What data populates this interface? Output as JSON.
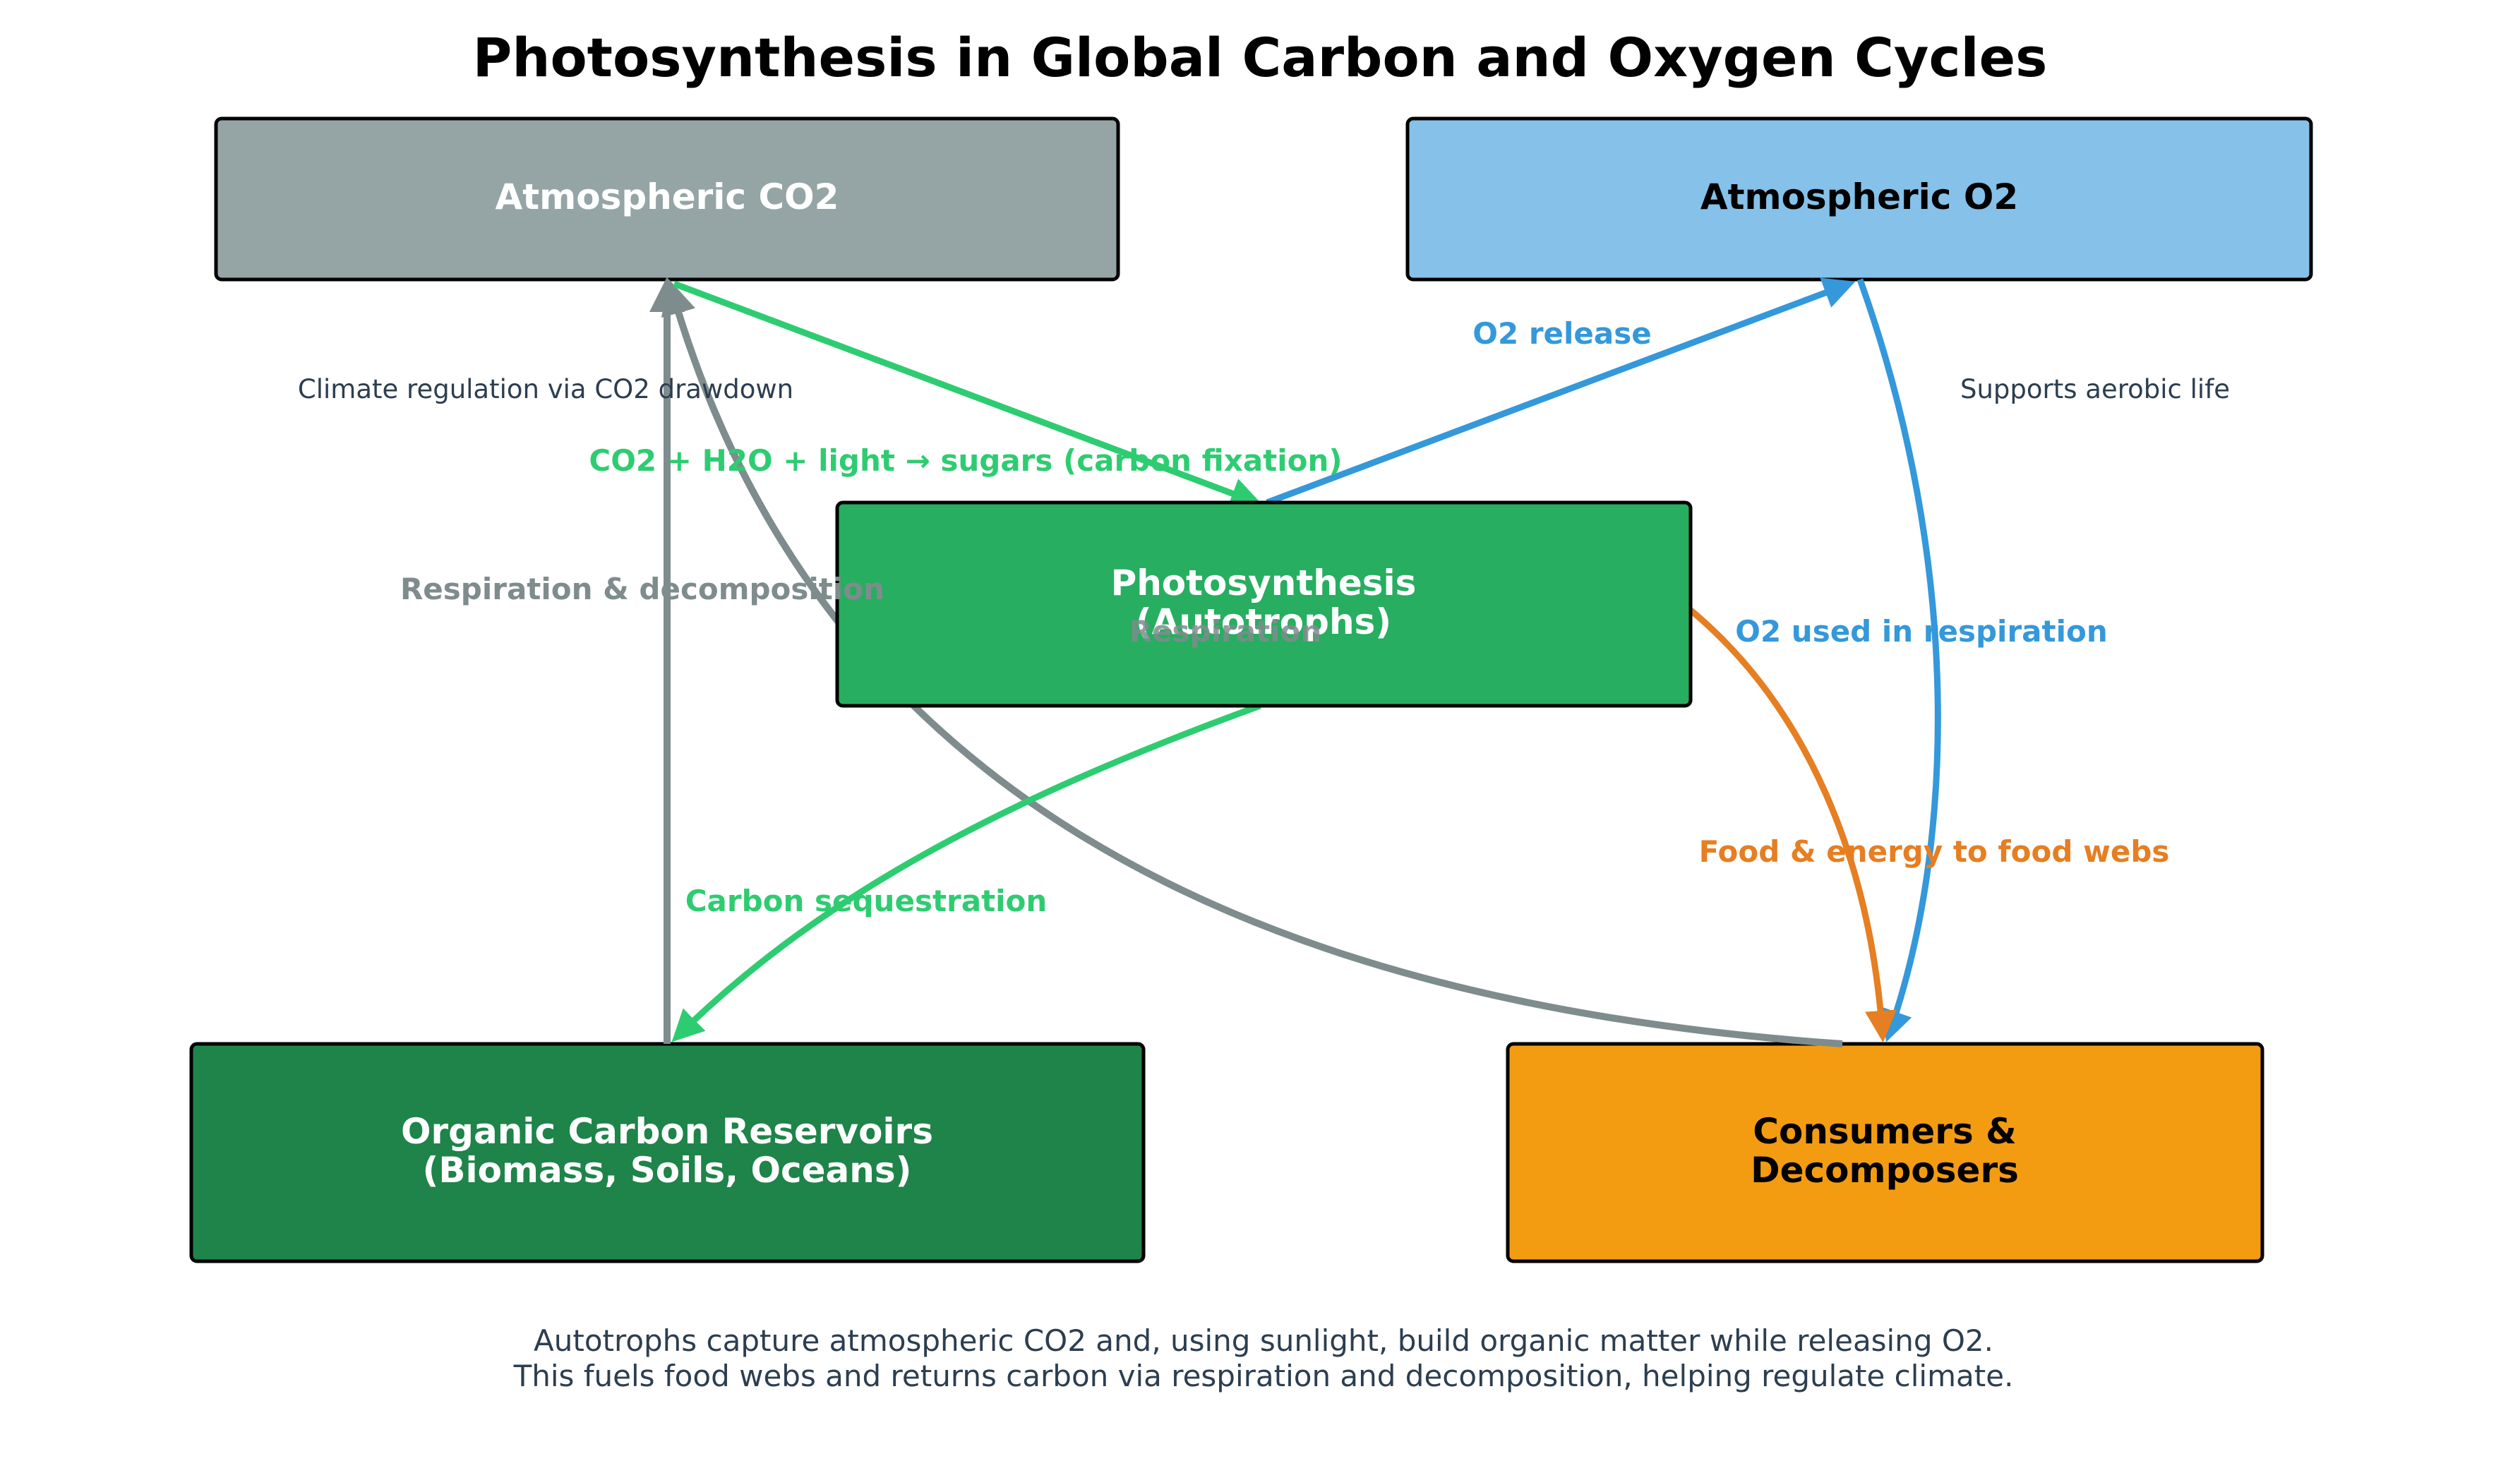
{
  "title": "Photosynthesis in Global Carbon and Oxygen Cycles",
  "colors": {
    "co2_box": "#95a5a6",
    "o2_box": "#85c1e9",
    "photosynthesis_box": "#27ae60",
    "reservoir_box": "#1e8449",
    "consumers_box": "#f39c12",
    "green_flow": "#2ecc71",
    "blue_flow": "#3498db",
    "gray_flow": "#7f8c8d",
    "orange_flow": "#e67e22"
  },
  "nodes": {
    "co2": {
      "label": "Atmospheric CO2"
    },
    "o2": {
      "label": "Atmospheric O2"
    },
    "photosynthesis": {
      "line1": "Photosynthesis",
      "line2": "(Autotrophs)"
    },
    "reservoirs": {
      "line1": "Organic Carbon Reservoirs",
      "line2": "(Biomass, Soils, Oceans)"
    },
    "consumers": {
      "line1": "Consumers &",
      "line2": "Decomposers"
    }
  },
  "edges": {
    "fixation": "CO2 + H2O + light → sugars (carbon fixation)",
    "o2_release": "O2 release",
    "respiration_decomposition": "Respiration & decomposition",
    "respiration": "Respiration",
    "o2_used": "O2 used in respiration",
    "food_energy": "Food & energy to food webs",
    "sequestration": "Carbon sequestration"
  },
  "notes": {
    "climate": "Climate regulation via CO2 drawdown",
    "aerobic": "Supports aerobic life"
  },
  "caption": {
    "line1": "Autotrophs capture atmospheric CO2 and, using sunlight, build organic matter while releasing O2.",
    "line2": "This fuels food webs and returns carbon via respiration and decomposition, helping regulate climate."
  }
}
